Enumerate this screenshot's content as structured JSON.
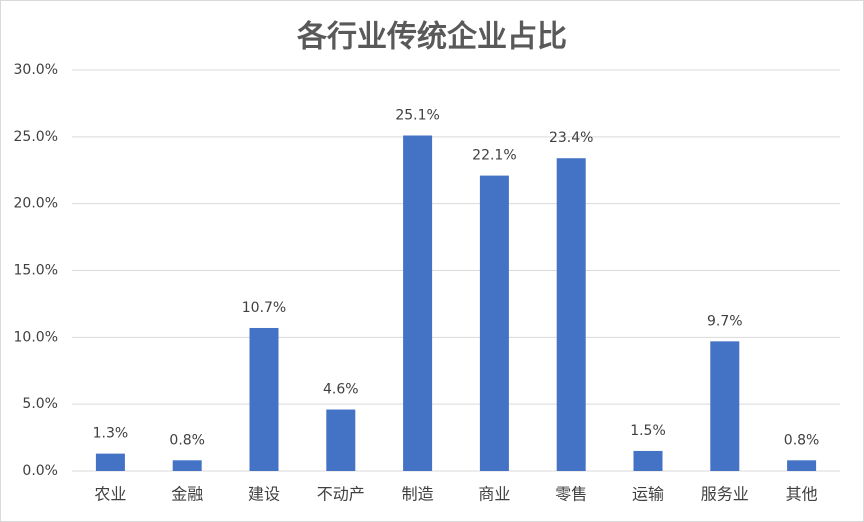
{
  "chart_data": {
    "type": "bar",
    "title": "各行业传统企业占比",
    "categories": [
      "农业",
      "金融",
      "建设",
      "不动产",
      "制造",
      "商业",
      "零售",
      "运输",
      "服务业",
      "其他"
    ],
    "values": [
      1.3,
      0.8,
      10.7,
      4.6,
      25.1,
      22.1,
      23.4,
      1.5,
      9.7,
      0.8
    ],
    "value_labels": [
      "1.3%",
      "0.8%",
      "10.7%",
      "4.6%",
      "25.1%",
      "22.1%",
      "23.4%",
      "1.5%",
      "9.7%",
      "0.8%"
    ],
    "color": "#4472c4",
    "ylim": [
      0,
      30
    ],
    "yticks": [
      {
        "value": 0,
        "label": "0.0%"
      },
      {
        "value": 5,
        "label": "5.0%"
      },
      {
        "value": 10,
        "label": "10.0%"
      },
      {
        "value": 15,
        "label": "15.0%"
      },
      {
        "value": 20,
        "label": "20.0%"
      },
      {
        "value": 25,
        "label": "25.0%"
      },
      {
        "value": 30,
        "label": "30.0%"
      }
    ],
    "grid": true
  }
}
